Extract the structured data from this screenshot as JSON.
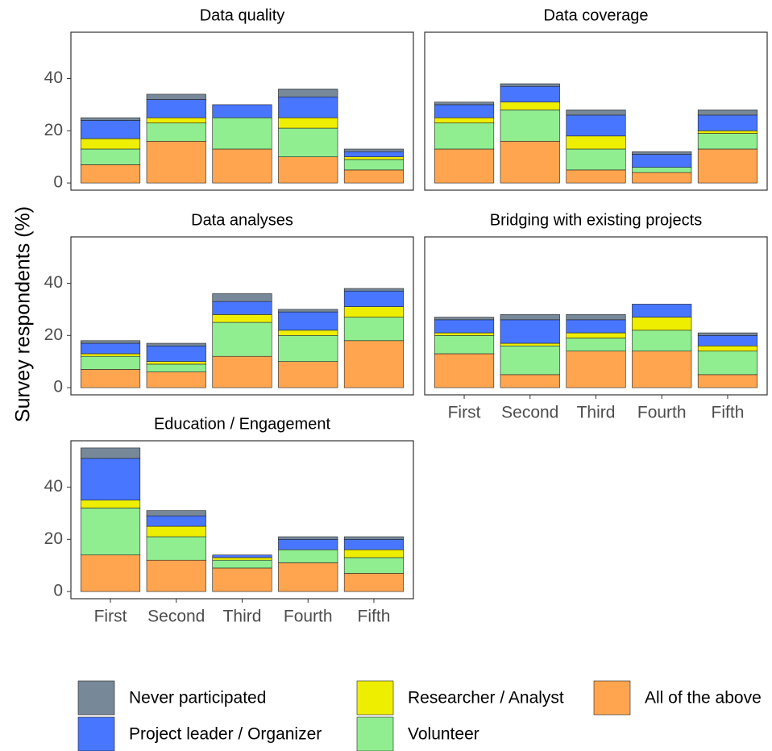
{
  "ylabel": "Survey respondents (%)",
  "chart_data": [
    {
      "type": "stacked_bar",
      "title": "Data quality",
      "categories": [
        null,
        null,
        null,
        null,
        null
      ],
      "series": [
        {
          "name": "Never participated",
          "color": "#778899",
          "values": [
            1,
            2,
            0,
            3,
            1
          ]
        },
        {
          "name": "Project leader / Organizer",
          "color": "#4876ff",
          "values": [
            7,
            7,
            5,
            8,
            2
          ]
        },
        {
          "name": "Researcher / Analyst",
          "color": "#eeee00",
          "values": [
            4,
            2,
            0,
            4,
            1
          ]
        },
        {
          "name": "Volunteer",
          "color": "#90ee90",
          "values": [
            6,
            7,
            12,
            11,
            4
          ]
        },
        {
          "name": "All of the above",
          "color": "#ffa54f",
          "values": [
            7,
            16,
            13,
            10,
            5
          ]
        }
      ],
      "ylim": [
        -2.75,
        57.75
      ],
      "yticks": [
        0,
        20,
        40
      ]
    },
    {
      "type": "stacked_bar",
      "title": "Data coverage",
      "categories": [
        null,
        null,
        null,
        null,
        null
      ],
      "series": [
        {
          "name": "Never participated",
          "color": "#778899",
          "values": [
            1,
            1,
            2,
            1,
            2
          ]
        },
        {
          "name": "Project leader / Organizer",
          "color": "#4876ff",
          "values": [
            5,
            6,
            8,
            5,
            6
          ]
        },
        {
          "name": "Researcher / Analyst",
          "color": "#eeee00",
          "values": [
            2,
            3,
            5,
            0,
            1
          ]
        },
        {
          "name": "Volunteer",
          "color": "#90ee90",
          "values": [
            10,
            12,
            8,
            2,
            6
          ]
        },
        {
          "name": "All of the above",
          "color": "#ffa54f",
          "values": [
            13,
            16,
            5,
            4,
            13
          ]
        }
      ],
      "ylim": [
        -2.75,
        57.75
      ],
      "yticks": []
    },
    {
      "type": "stacked_bar",
      "title": "Data analyses",
      "categories": [
        null,
        null,
        null,
        null,
        null
      ],
      "series": [
        {
          "name": "Never participated",
          "color": "#778899",
          "values": [
            1,
            1,
            3,
            1,
            1
          ]
        },
        {
          "name": "Project leader / Organizer",
          "color": "#4876ff",
          "values": [
            4,
            6,
            5,
            7,
            6
          ]
        },
        {
          "name": "Researcher / Analyst",
          "color": "#eeee00",
          "values": [
            1,
            1,
            3,
            2,
            4
          ]
        },
        {
          "name": "Volunteer",
          "color": "#90ee90",
          "values": [
            5,
            3,
            13,
            10,
            9
          ]
        },
        {
          "name": "All of the above",
          "color": "#ffa54f",
          "values": [
            7,
            6,
            12,
            10,
            18
          ]
        }
      ],
      "ylim": [
        -2.75,
        57.75
      ],
      "yticks": [
        0,
        20,
        40
      ]
    },
    {
      "type": "stacked_bar",
      "title": "Bridging with existing projects",
      "categories": [
        "First",
        "Second",
        "Third",
        "Fourth",
        "Fifth"
      ],
      "series": [
        {
          "name": "Never participated",
          "color": "#778899",
          "values": [
            1,
            2,
            2,
            0,
            1
          ]
        },
        {
          "name": "Project leader / Organizer",
          "color": "#4876ff",
          "values": [
            5,
            9,
            5,
            5,
            4
          ]
        },
        {
          "name": "Researcher / Analyst",
          "color": "#eeee00",
          "values": [
            1,
            1,
            2,
            5,
            2
          ]
        },
        {
          "name": "Volunteer",
          "color": "#90ee90",
          "values": [
            7,
            11,
            5,
            8,
            9
          ]
        },
        {
          "name": "All of the above",
          "color": "#ffa54f",
          "values": [
            13,
            5,
            14,
            14,
            5
          ]
        }
      ],
      "ylim": [
        -2.75,
        57.75
      ],
      "yticks": []
    },
    {
      "type": "stacked_bar",
      "title": "Education / Engagement",
      "categories": [
        "First",
        "Second",
        "Third",
        "Fourth",
        "Fifth"
      ],
      "series": [
        {
          "name": "Never participated",
          "color": "#778899",
          "values": [
            4,
            2,
            0,
            1,
            1
          ]
        },
        {
          "name": "Project leader / Organizer",
          "color": "#4876ff",
          "values": [
            16,
            4,
            1,
            4,
            4
          ]
        },
        {
          "name": "Researcher / Analyst",
          "color": "#eeee00",
          "values": [
            3,
            4,
            1,
            0,
            3
          ]
        },
        {
          "name": "Volunteer",
          "color": "#90ee90",
          "values": [
            18,
            9,
            3,
            5,
            6
          ]
        },
        {
          "name": "All of the above",
          "color": "#ffa54f",
          "values": [
            14,
            12,
            9,
            11,
            7
          ]
        }
      ],
      "ylim": [
        -2.75,
        57.75
      ],
      "yticks": [
        0,
        20,
        40
      ]
    }
  ]
}
